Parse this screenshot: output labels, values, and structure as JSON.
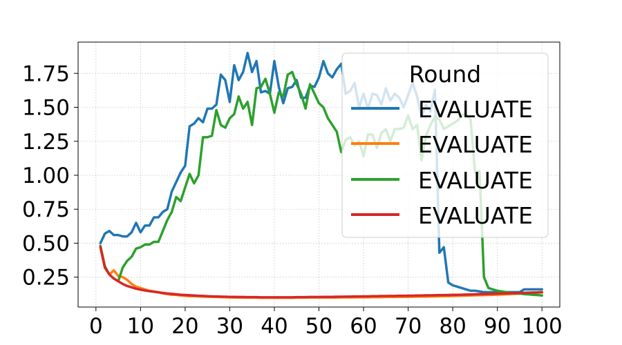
{
  "chart_data": {
    "type": "line",
    "title": "",
    "xlabel": "",
    "ylabel": "",
    "xlim": [
      -4,
      104
    ],
    "ylim": [
      0.03,
      1.98
    ],
    "x_ticks": [
      0,
      10,
      20,
      30,
      40,
      50,
      60,
      70,
      80,
      90,
      100
    ],
    "y_ticks": [
      0.25,
      0.5,
      0.75,
      1.0,
      1.25,
      1.5,
      1.75
    ],
    "x_tick_labels": [
      "0",
      "10",
      "20",
      "30",
      "40",
      "50",
      "60",
      "70",
      "80",
      "90",
      "100"
    ],
    "y_tick_labels": [
      "0.25",
      "0.50",
      "0.75",
      "1.00",
      "1.25",
      "1.50",
      "1.75"
    ],
    "grid": true,
    "legend": {
      "title": "Round",
      "position": "top-right"
    },
    "series": [
      {
        "name": "EVALUATE",
        "color": "#1f77b4",
        "x": [
          1,
          2,
          3,
          4,
          5,
          6,
          7,
          8,
          9,
          10,
          11,
          12,
          13,
          14,
          15,
          16,
          17,
          18,
          19,
          20,
          21,
          22,
          23,
          24,
          25,
          26,
          27,
          28,
          29,
          30,
          31,
          32,
          33,
          34,
          35,
          36,
          37,
          38,
          39,
          40,
          41,
          42,
          43,
          44,
          45,
          46,
          47,
          48,
          49,
          50,
          51,
          52,
          53,
          54,
          55,
          56,
          57,
          58,
          59,
          60,
          61,
          62,
          63,
          64,
          65,
          66,
          67,
          68,
          69,
          70,
          71,
          72,
          73,
          74,
          75,
          76,
          77,
          78,
          79,
          80,
          81,
          82,
          83,
          84,
          85,
          86,
          87,
          88,
          89,
          90,
          91,
          92,
          93,
          94,
          95,
          96,
          97,
          98,
          99,
          100
        ],
        "y": [
          0.5,
          0.57,
          0.59,
          0.56,
          0.56,
          0.55,
          0.55,
          0.58,
          0.65,
          0.58,
          0.63,
          0.63,
          0.69,
          0.69,
          0.73,
          0.75,
          0.88,
          0.95,
          1.02,
          1.07,
          1.36,
          1.38,
          1.42,
          1.39,
          1.49,
          1.49,
          1.52,
          1.74,
          1.7,
          1.54,
          1.81,
          1.7,
          1.76,
          1.9,
          1.76,
          1.84,
          1.61,
          1.62,
          1.6,
          1.84,
          1.65,
          1.53,
          1.64,
          1.65,
          1.7,
          1.57,
          1.57,
          1.66,
          1.65,
          1.72,
          1.84,
          1.75,
          1.72,
          1.78,
          1.82,
          1.6,
          1.62,
          1.68,
          1.5,
          1.6,
          1.49,
          1.6,
          1.59,
          1.52,
          1.64,
          1.55,
          1.6,
          1.57,
          1.5,
          1.59,
          1.68,
          1.58,
          1.43,
          1.52,
          1.47,
          1.63,
          0.43,
          0.47,
          0.21,
          0.19,
          0.18,
          0.17,
          0.16,
          0.15,
          0.15,
          0.145,
          0.14,
          0.14,
          0.14,
          0.14,
          0.14,
          0.14,
          0.14,
          0.14,
          0.14,
          0.16,
          0.16,
          0.16,
          0.16,
          0.16
        ]
      },
      {
        "name": "EVALUATE",
        "color": "#ff7f0e",
        "x": [
          1,
          2,
          3,
          4,
          5,
          6,
          7,
          8,
          9,
          10,
          11,
          12,
          13,
          14,
          15,
          16,
          17,
          18,
          19,
          20,
          21,
          22,
          23,
          24,
          25,
          26,
          27,
          28,
          29,
          30,
          31,
          32,
          33,
          34,
          35,
          36,
          37,
          38,
          39,
          40,
          41,
          42,
          43,
          44,
          45,
          46,
          47,
          48,
          49,
          50,
          51,
          52,
          53,
          54,
          55,
          56,
          57,
          58,
          59,
          60,
          61,
          62,
          63,
          64,
          65,
          66,
          67,
          68,
          69,
          70,
          71,
          72,
          73,
          74,
          75,
          76,
          77,
          78,
          79,
          80,
          81,
          82,
          83,
          84,
          85,
          86,
          87,
          88,
          89,
          90,
          91,
          92,
          93,
          94,
          95,
          96,
          97,
          98,
          99,
          100
        ],
        "y": [
          0.48,
          0.33,
          0.27,
          0.3,
          0.26,
          0.25,
          0.23,
          0.2,
          0.18,
          0.17,
          0.16,
          0.15,
          0.145,
          0.14,
          0.13,
          0.125,
          0.12,
          0.12,
          0.115,
          0.112,
          0.11,
          0.11,
          0.108,
          0.107,
          0.106,
          0.105,
          0.104,
          0.103,
          0.102,
          0.101,
          0.1,
          0.1,
          0.1,
          0.099,
          0.099,
          0.099,
          0.098,
          0.098,
          0.098,
          0.098,
          0.098,
          0.098,
          0.098,
          0.098,
          0.099,
          0.099,
          0.099,
          0.1,
          0.1,
          0.1,
          0.1,
          0.1,
          0.1,
          0.1,
          0.101,
          0.101,
          0.101,
          0.101,
          0.102,
          0.102,
          0.102,
          0.103,
          0.103,
          0.103,
          0.104,
          0.104,
          0.104,
          0.105,
          0.105,
          0.105,
          0.106,
          0.106,
          0.107,
          0.107,
          0.108,
          0.108,
          0.109,
          0.11,
          0.11,
          0.111,
          0.112,
          0.113,
          0.114,
          0.115,
          0.116,
          0.117,
          0.118,
          0.119,
          0.12,
          0.121,
          0.122,
          0.124,
          0.125,
          0.127,
          0.128,
          0.13,
          0.132,
          0.134,
          0.136,
          0.138
        ]
      },
      {
        "name": "EVALUATE",
        "color": "#2ca02c",
        "x": [
          1,
          2,
          3,
          4,
          5,
          6,
          7,
          8,
          9,
          10,
          11,
          12,
          13,
          14,
          15,
          16,
          17,
          18,
          19,
          20,
          21,
          22,
          23,
          24,
          25,
          26,
          27,
          28,
          29,
          30,
          31,
          32,
          33,
          34,
          35,
          36,
          37,
          38,
          39,
          40,
          41,
          42,
          43,
          44,
          45,
          46,
          47,
          48,
          49,
          50,
          51,
          52,
          53,
          54,
          55,
          56,
          57,
          58,
          59,
          60,
          61,
          62,
          63,
          64,
          65,
          66,
          67,
          68,
          69,
          70,
          71,
          72,
          73,
          74,
          75,
          76,
          77,
          78,
          79,
          80,
          81,
          82,
          83,
          84,
          85,
          86,
          87,
          88,
          89,
          90,
          91,
          92,
          93,
          94,
          95,
          96,
          97,
          98,
          99,
          100
        ],
        "y": [
          0.48,
          0.33,
          0.27,
          0.24,
          0.22,
          0.32,
          0.37,
          0.4,
          0.46,
          0.47,
          0.49,
          0.49,
          0.51,
          0.51,
          0.59,
          0.67,
          0.73,
          0.84,
          0.81,
          0.91,
          1.01,
          0.94,
          1.0,
          1.28,
          1.28,
          1.29,
          1.48,
          1.37,
          1.35,
          1.42,
          1.45,
          1.58,
          1.49,
          1.54,
          1.37,
          1.64,
          1.65,
          1.71,
          1.6,
          1.46,
          1.61,
          1.58,
          1.74,
          1.76,
          1.67,
          1.6,
          1.49,
          1.67,
          1.6,
          1.53,
          1.5,
          1.42,
          1.37,
          1.32,
          1.17,
          1.26,
          1.28,
          1.22,
          1.25,
          1.14,
          1.3,
          1.3,
          1.2,
          1.31,
          1.34,
          1.25,
          1.34,
          1.34,
          1.35,
          1.44,
          1.34,
          1.37,
          1.11,
          1.29,
          1.37,
          1.43,
          1.41,
          1.34,
          1.36,
          1.38,
          1.4,
          1.44,
          1.45,
          1.41,
          1.02,
          1.03,
          0.25,
          0.17,
          0.16,
          0.15,
          0.145,
          0.14,
          0.135,
          0.13,
          0.13,
          0.125,
          0.123,
          0.12,
          0.118,
          0.115
        ]
      },
      {
        "name": "EVALUATE",
        "color": "#d62728",
        "x": [
          1,
          2,
          3,
          4,
          5,
          6,
          7,
          8,
          9,
          10,
          11,
          12,
          13,
          14,
          15,
          16,
          17,
          18,
          19,
          20,
          21,
          22,
          23,
          24,
          25,
          26,
          27,
          28,
          29,
          30,
          31,
          32,
          33,
          34,
          35,
          36,
          37,
          38,
          39,
          40,
          41,
          42,
          43,
          44,
          45,
          46,
          47,
          48,
          49,
          50,
          51,
          52,
          53,
          54,
          55,
          56,
          57,
          58,
          59,
          60,
          61,
          62,
          63,
          64,
          65,
          66,
          67,
          68,
          69,
          70,
          71,
          72,
          73,
          74,
          75,
          76,
          77,
          78,
          79,
          80,
          81,
          82,
          83,
          84,
          85,
          86,
          87,
          88,
          89,
          90,
          91,
          92,
          93,
          94,
          95,
          96,
          97,
          98,
          99,
          100
        ],
        "y": [
          0.47,
          0.32,
          0.27,
          0.24,
          0.22,
          0.2,
          0.185,
          0.175,
          0.165,
          0.158,
          0.152,
          0.147,
          0.142,
          0.138,
          0.134,
          0.13,
          0.127,
          0.124,
          0.121,
          0.119,
          0.117,
          0.115,
          0.113,
          0.112,
          0.11,
          0.109,
          0.108,
          0.107,
          0.106,
          0.105,
          0.105,
          0.104,
          0.104,
          0.103,
          0.103,
          0.103,
          0.102,
          0.102,
          0.102,
          0.102,
          0.102,
          0.102,
          0.102,
          0.102,
          0.103,
          0.103,
          0.103,
          0.104,
          0.104,
          0.104,
          0.105,
          0.105,
          0.105,
          0.106,
          0.106,
          0.107,
          0.107,
          0.108,
          0.108,
          0.109,
          0.109,
          0.11,
          0.11,
          0.111,
          0.111,
          0.112,
          0.112,
          0.113,
          0.113,
          0.114,
          0.114,
          0.115,
          0.115,
          0.116,
          0.116,
          0.117,
          0.118,
          0.118,
          0.119,
          0.12,
          0.12,
          0.121,
          0.122,
          0.123,
          0.124,
          0.125,
          0.126,
          0.127,
          0.128,
          0.129,
          0.13,
          0.131,
          0.132,
          0.133,
          0.134,
          0.135,
          0.136,
          0.137,
          0.138,
          0.14
        ]
      }
    ]
  }
}
